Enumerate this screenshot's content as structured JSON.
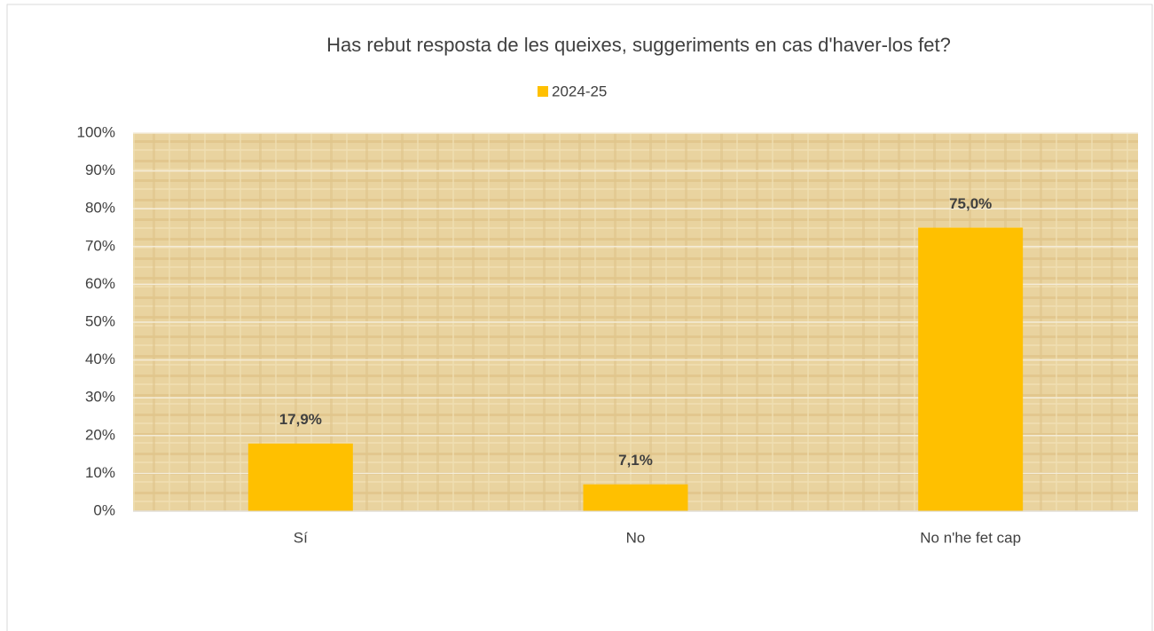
{
  "chart_data": {
    "type": "bar",
    "title": "Has rebut resposta de les queixes, suggeriments en cas d'haver-los fet?",
    "categories": [
      "Sí",
      "No",
      "No n'he fet cap"
    ],
    "series": [
      {
        "name": "2024-25",
        "color": "#ffc000",
        "values": [
          17.9,
          7.1,
          75.0
        ],
        "value_labels": [
          "17,9%",
          "7,1%",
          "75,0%"
        ]
      }
    ],
    "ylim": [
      0,
      100
    ],
    "yticks": [
      {
        "value": 0,
        "label": "0%"
      },
      {
        "value": 10,
        "label": "10%"
      },
      {
        "value": 20,
        "label": "20%"
      },
      {
        "value": 30,
        "label": "30%"
      },
      {
        "value": 40,
        "label": "40%"
      },
      {
        "value": 50,
        "label": "50%"
      },
      {
        "value": 60,
        "label": "60%"
      },
      {
        "value": 70,
        "label": "70%"
      },
      {
        "value": 80,
        "label": "80%"
      },
      {
        "value": 90,
        "label": "90%"
      },
      {
        "value": 100,
        "label": "100%"
      }
    ],
    "grid": true,
    "legend": "top"
  }
}
